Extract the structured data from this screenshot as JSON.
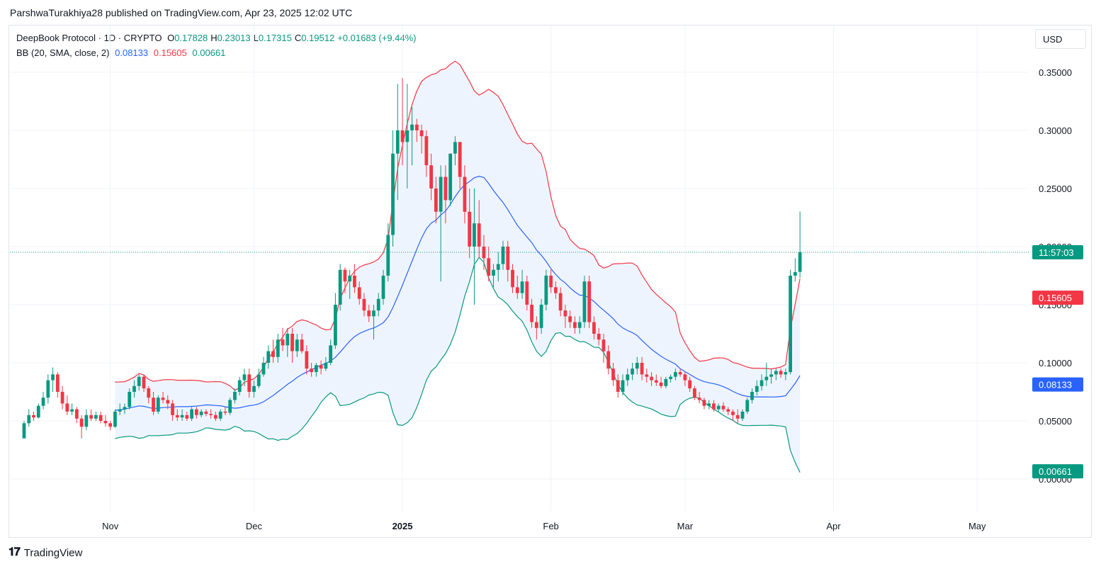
{
  "header": {
    "published_line": "ParshwaTurakhiya28 published on TradingView.com, Apr 23, 2025 12:02 UTC"
  },
  "legend": {
    "symbol": "DeepBook Protocol · 1D · CRYPTO",
    "o_label": "O",
    "o_value": "0.17828",
    "h_label": "H",
    "h_value": "0.23013",
    "l_label": "L",
    "l_value": "0.17315",
    "c_label": "C",
    "c_value": "0.19512",
    "change": "+0.01683 (+9.44%)",
    "bb_label": "BB (20, SMA, close, 2)",
    "bb_basis": "0.08133",
    "bb_upper": "0.15605",
    "bb_lower": "0.00661"
  },
  "currency_button": "USD",
  "price_tags": {
    "countdown": "11:57:03",
    "upper": "0.15605",
    "basis": "0.08133",
    "lower": "0.00661"
  },
  "footer": {
    "brand": "TradingView"
  },
  "colors": {
    "up": "#089981",
    "down": "#f23645",
    "basis": "#2962ff",
    "upper": "#f23645",
    "lower": "#089981",
    "band_fill": "#eef4fd"
  },
  "chart_data": {
    "type": "candlestick",
    "y_axis": {
      "ticks": [
        "0.35000",
        "0.30000",
        "0.25000",
        "0.20000",
        "0.15000",
        "0.10000",
        "0.05000",
        "0.00000"
      ],
      "ylim": [
        -0.01,
        0.36
      ]
    },
    "x_axis": {
      "ticks": [
        "Nov",
        "Dec",
        "2025",
        "Feb",
        "Mar",
        "Apr",
        "May"
      ]
    },
    "start_date": "2024-10-14",
    "end_date": "2025-04-23",
    "close_price_line": 0.19512,
    "candles": [
      [
        0.035,
        0.05,
        0.035,
        0.048
      ],
      [
        0.048,
        0.06,
        0.045,
        0.055
      ],
      [
        0.055,
        0.058,
        0.05,
        0.053
      ],
      [
        0.053,
        0.065,
        0.052,
        0.063
      ],
      [
        0.063,
        0.075,
        0.06,
        0.07
      ],
      [
        0.07,
        0.09,
        0.065,
        0.085
      ],
      [
        0.085,
        0.096,
        0.075,
        0.09
      ],
      [
        0.09,
        0.092,
        0.07,
        0.075
      ],
      [
        0.075,
        0.08,
        0.06,
        0.065
      ],
      [
        0.065,
        0.072,
        0.055,
        0.058
      ],
      [
        0.058,
        0.065,
        0.055,
        0.06
      ],
      [
        0.06,
        0.062,
        0.048,
        0.052
      ],
      [
        0.052,
        0.055,
        0.035,
        0.045
      ],
      [
        0.045,
        0.06,
        0.042,
        0.055
      ],
      [
        0.055,
        0.06,
        0.05,
        0.052
      ],
      [
        0.052,
        0.058,
        0.05,
        0.055
      ],
      [
        0.055,
        0.058,
        0.048,
        0.05
      ],
      [
        0.05,
        0.055,
        0.045,
        0.048
      ],
      [
        0.048,
        0.05,
        0.042,
        0.045
      ],
      [
        0.045,
        0.06,
        0.044,
        0.058
      ],
      [
        0.058,
        0.065,
        0.055,
        0.06
      ],
      [
        0.06,
        0.065,
        0.056,
        0.062
      ],
      [
        0.062,
        0.078,
        0.06,
        0.075
      ],
      [
        0.075,
        0.085,
        0.07,
        0.08
      ],
      [
        0.08,
        0.09,
        0.076,
        0.088
      ],
      [
        0.088,
        0.09,
        0.075,
        0.078
      ],
      [
        0.078,
        0.08,
        0.065,
        0.07
      ],
      [
        0.07,
        0.075,
        0.055,
        0.058
      ],
      [
        0.058,
        0.072,
        0.056,
        0.07
      ],
      [
        0.07,
        0.075,
        0.065,
        0.068
      ],
      [
        0.068,
        0.072,
        0.06,
        0.065
      ],
      [
        0.065,
        0.068,
        0.05,
        0.055
      ],
      [
        0.055,
        0.06,
        0.05,
        0.053
      ],
      [
        0.053,
        0.06,
        0.05,
        0.055
      ],
      [
        0.055,
        0.058,
        0.05,
        0.052
      ],
      [
        0.052,
        0.062,
        0.05,
        0.06
      ],
      [
        0.06,
        0.062,
        0.052,
        0.055
      ],
      [
        0.055,
        0.06,
        0.053,
        0.058
      ],
      [
        0.058,
        0.06,
        0.054,
        0.056
      ],
      [
        0.056,
        0.06,
        0.052,
        0.055
      ],
      [
        0.055,
        0.058,
        0.05,
        0.052
      ],
      [
        0.052,
        0.06,
        0.05,
        0.058
      ],
      [
        0.058,
        0.062,
        0.055,
        0.057
      ],
      [
        0.057,
        0.07,
        0.055,
        0.068
      ],
      [
        0.068,
        0.078,
        0.065,
        0.075
      ],
      [
        0.075,
        0.088,
        0.072,
        0.085
      ],
      [
        0.085,
        0.095,
        0.08,
        0.09
      ],
      [
        0.09,
        0.095,
        0.07,
        0.075
      ],
      [
        0.075,
        0.085,
        0.07,
        0.08
      ],
      [
        0.08,
        0.095,
        0.078,
        0.09
      ],
      [
        0.09,
        0.105,
        0.088,
        0.1
      ],
      [
        0.1,
        0.115,
        0.095,
        0.11
      ],
      [
        0.11,
        0.12,
        0.1,
        0.105
      ],
      [
        0.105,
        0.125,
        0.1,
        0.12
      ],
      [
        0.12,
        0.13,
        0.11,
        0.115
      ],
      [
        0.115,
        0.13,
        0.105,
        0.125
      ],
      [
        0.125,
        0.13,
        0.1,
        0.11
      ],
      [
        0.11,
        0.125,
        0.105,
        0.12
      ],
      [
        0.12,
        0.125,
        0.108,
        0.11
      ],
      [
        0.11,
        0.115,
        0.09,
        0.095
      ],
      [
        0.095,
        0.1,
        0.088,
        0.092
      ],
      [
        0.092,
        0.1,
        0.088,
        0.098
      ],
      [
        0.098,
        0.102,
        0.09,
        0.095
      ],
      [
        0.095,
        0.105,
        0.093,
        0.1
      ],
      [
        0.1,
        0.12,
        0.098,
        0.115
      ],
      [
        0.115,
        0.16,
        0.112,
        0.15
      ],
      [
        0.15,
        0.185,
        0.145,
        0.18
      ],
      [
        0.18,
        0.182,
        0.16,
        0.17
      ],
      [
        0.17,
        0.18,
        0.155,
        0.175
      ],
      [
        0.175,
        0.185,
        0.16,
        0.165
      ],
      [
        0.165,
        0.17,
        0.15,
        0.155
      ],
      [
        0.155,
        0.16,
        0.14,
        0.145
      ],
      [
        0.145,
        0.15,
        0.135,
        0.14
      ],
      [
        0.14,
        0.15,
        0.12,
        0.145
      ],
      [
        0.145,
        0.16,
        0.14,
        0.155
      ],
      [
        0.155,
        0.18,
        0.15,
        0.175
      ],
      [
        0.175,
        0.22,
        0.17,
        0.21
      ],
      [
        0.21,
        0.3,
        0.2,
        0.28
      ],
      [
        0.28,
        0.34,
        0.24,
        0.3
      ],
      [
        0.3,
        0.345,
        0.27,
        0.29
      ],
      [
        0.29,
        0.34,
        0.25,
        0.3
      ],
      [
        0.3,
        0.32,
        0.27,
        0.305
      ],
      [
        0.305,
        0.31,
        0.29,
        0.3
      ],
      [
        0.3,
        0.305,
        0.28,
        0.295
      ],
      [
        0.295,
        0.3,
        0.26,
        0.27
      ],
      [
        0.27,
        0.28,
        0.24,
        0.25
      ],
      [
        0.25,
        0.26,
        0.22,
        0.23
      ],
      [
        0.23,
        0.27,
        0.17,
        0.26
      ],
      [
        0.26,
        0.27,
        0.22,
        0.24
      ],
      [
        0.24,
        0.28,
        0.235,
        0.28
      ],
      [
        0.28,
        0.295,
        0.27,
        0.29
      ],
      [
        0.29,
        0.29,
        0.25,
        0.26
      ],
      [
        0.26,
        0.27,
        0.22,
        0.23
      ],
      [
        0.23,
        0.25,
        0.19,
        0.2
      ],
      [
        0.2,
        0.25,
        0.15,
        0.22
      ],
      [
        0.22,
        0.24,
        0.19,
        0.2
      ],
      [
        0.2,
        0.21,
        0.18,
        0.19
      ],
      [
        0.19,
        0.2,
        0.17,
        0.175
      ],
      [
        0.175,
        0.185,
        0.165,
        0.18
      ],
      [
        0.18,
        0.195,
        0.17,
        0.185
      ],
      [
        0.185,
        0.205,
        0.18,
        0.2
      ],
      [
        0.2,
        0.205,
        0.17,
        0.18
      ],
      [
        0.18,
        0.185,
        0.16,
        0.165
      ],
      [
        0.165,
        0.175,
        0.155,
        0.16
      ],
      [
        0.16,
        0.18,
        0.155,
        0.17
      ],
      [
        0.17,
        0.175,
        0.145,
        0.15
      ],
      [
        0.15,
        0.155,
        0.13,
        0.135
      ],
      [
        0.135,
        0.14,
        0.12,
        0.13
      ],
      [
        0.13,
        0.155,
        0.125,
        0.15
      ],
      [
        0.15,
        0.18,
        0.145,
        0.175
      ],
      [
        0.175,
        0.18,
        0.16,
        0.165
      ],
      [
        0.165,
        0.17,
        0.155,
        0.16
      ],
      [
        0.16,
        0.165,
        0.14,
        0.145
      ],
      [
        0.145,
        0.15,
        0.13,
        0.14
      ],
      [
        0.14,
        0.145,
        0.13,
        0.135
      ],
      [
        0.135,
        0.14,
        0.125,
        0.13
      ],
      [
        0.13,
        0.14,
        0.125,
        0.135
      ],
      [
        0.135,
        0.175,
        0.13,
        0.17
      ],
      [
        0.17,
        0.175,
        0.13,
        0.135
      ],
      [
        0.135,
        0.14,
        0.12,
        0.125
      ],
      [
        0.125,
        0.13,
        0.115,
        0.12
      ],
      [
        0.12,
        0.125,
        0.1,
        0.11
      ],
      [
        0.11,
        0.115,
        0.09,
        0.095
      ],
      [
        0.095,
        0.1,
        0.08,
        0.085
      ],
      [
        0.085,
        0.09,
        0.07,
        0.075
      ],
      [
        0.075,
        0.09,
        0.072,
        0.085
      ],
      [
        0.085,
        0.095,
        0.08,
        0.09
      ],
      [
        0.09,
        0.1,
        0.085,
        0.095
      ],
      [
        0.095,
        0.105,
        0.09,
        0.1
      ],
      [
        0.1,
        0.105,
        0.085,
        0.09
      ],
      [
        0.09,
        0.095,
        0.083,
        0.088
      ],
      [
        0.088,
        0.092,
        0.08,
        0.085
      ],
      [
        0.085,
        0.09,
        0.08,
        0.083
      ],
      [
        0.083,
        0.088,
        0.078,
        0.08
      ],
      [
        0.08,
        0.088,
        0.078,
        0.086
      ],
      [
        0.086,
        0.09,
        0.083,
        0.088
      ],
      [
        0.088,
        0.095,
        0.085,
        0.092
      ],
      [
        0.092,
        0.095,
        0.088,
        0.09
      ],
      [
        0.09,
        0.092,
        0.08,
        0.085
      ],
      [
        0.085,
        0.088,
        0.075,
        0.078
      ],
      [
        0.078,
        0.08,
        0.068,
        0.07
      ],
      [
        0.07,
        0.075,
        0.065,
        0.068
      ],
      [
        0.068,
        0.07,
        0.06,
        0.063
      ],
      [
        0.063,
        0.068,
        0.06,
        0.065
      ],
      [
        0.065,
        0.068,
        0.058,
        0.06
      ],
      [
        0.06,
        0.065,
        0.058,
        0.063
      ],
      [
        0.063,
        0.066,
        0.058,
        0.06
      ],
      [
        0.06,
        0.062,
        0.055,
        0.058
      ],
      [
        0.058,
        0.06,
        0.05,
        0.055
      ],
      [
        0.055,
        0.06,
        0.048,
        0.052
      ],
      [
        0.052,
        0.06,
        0.05,
        0.058
      ],
      [
        0.058,
        0.07,
        0.056,
        0.068
      ],
      [
        0.068,
        0.078,
        0.065,
        0.075
      ],
      [
        0.075,
        0.085,
        0.072,
        0.08
      ],
      [
        0.08,
        0.09,
        0.076,
        0.085
      ],
      [
        0.085,
        0.1,
        0.08,
        0.088
      ],
      [
        0.088,
        0.095,
        0.082,
        0.09
      ],
      [
        0.09,
        0.095,
        0.085,
        0.093
      ],
      [
        0.093,
        0.095,
        0.087,
        0.09
      ],
      [
        0.09,
        0.095,
        0.085,
        0.092
      ],
      [
        0.092,
        0.18,
        0.09,
        0.175
      ],
      [
        0.175,
        0.19,
        0.17,
        0.178
      ],
      [
        0.17828,
        0.23013,
        0.17315,
        0.19512
      ]
    ]
  }
}
